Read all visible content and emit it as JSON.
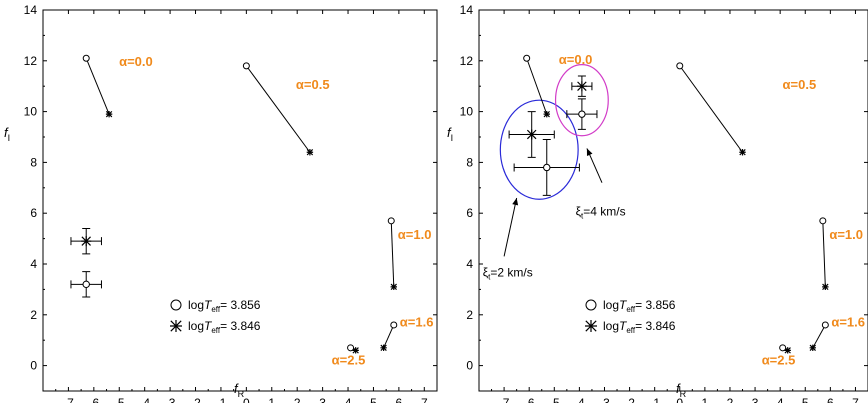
{
  "chart_data": [
    {
      "type": "scatter",
      "panel": "left",
      "xlabel": "f",
      "xlabel_sub": "R",
      "ylabel": "f",
      "ylabel_sub": "I",
      "xlim": [
        -8,
        7.5
      ],
      "ylim": [
        -1,
        14
      ],
      "xticks": [
        -7,
        -6,
        -5,
        -4,
        -3,
        -2,
        -1,
        0,
        1,
        2,
        3,
        4,
        5,
        6,
        7
      ],
      "yticks": [
        0,
        2,
        4,
        6,
        8,
        10,
        12,
        14
      ],
      "grid": false,
      "series": [
        {
          "legend_prefix": "log",
          "legend_var": "T",
          "legend_sub": "eff",
          "legend_value": "= 3.856",
          "marker": "circle"
        },
        {
          "legend_prefix": "log",
          "legend_var": "T",
          "legend_sub": "eff",
          "legend_value": "= 3.846",
          "marker": "star"
        }
      ],
      "pairs": [
        {
          "label": "α=0.0",
          "circle": [
            -6.3,
            12.1
          ],
          "star": [
            -5.4,
            9.9
          ]
        },
        {
          "label": "α=0.5",
          "circle": [
            0.0,
            11.8
          ],
          "star": [
            2.5,
            8.4
          ]
        },
        {
          "label": "α=1.0",
          "circle": [
            5.7,
            5.7
          ],
          "star": [
            5.8,
            3.1
          ]
        },
        {
          "label": "α=1.6",
          "circle": [
            5.8,
            1.6
          ],
          "star": [
            5.4,
            0.7
          ]
        },
        {
          "label": "α=2.5",
          "circle": [
            4.1,
            0.7
          ],
          "star": [
            4.3,
            0.6
          ]
        }
      ],
      "error_points": [
        {
          "marker": "star",
          "x": -6.3,
          "y": 4.9,
          "xerr": 0.6,
          "yerr": 0.5
        },
        {
          "marker": "circle",
          "x": -6.3,
          "y": 3.2,
          "xerr": 0.6,
          "yerr": 0.5
        }
      ]
    },
    {
      "type": "scatter",
      "panel": "right",
      "xlabel": "f",
      "xlabel_sub": "R",
      "ylabel": "f",
      "ylabel_sub": "I",
      "xlim": [
        -8,
        7.5
      ],
      "ylim": [
        -1,
        14
      ],
      "xticks": [
        -7,
        -6,
        -5,
        -4,
        -3,
        -2,
        -1,
        0,
        1,
        2,
        3,
        4,
        5,
        6,
        7
      ],
      "yticks": [
        0,
        2,
        4,
        6,
        8,
        10,
        12,
        14
      ],
      "grid": false,
      "series": [
        {
          "legend_prefix": "log",
          "legend_var": "T",
          "legend_sub": "eff",
          "legend_value": "= 3.856",
          "marker": "circle"
        },
        {
          "legend_prefix": "log",
          "legend_var": "T",
          "legend_sub": "eff",
          "legend_value": "= 3.846",
          "marker": "star"
        }
      ],
      "pairs": [
        {
          "label": "α=0.0",
          "circle": [
            -6.1,
            12.1
          ],
          "star": [
            -5.3,
            9.9
          ]
        },
        {
          "label": "α=0.5",
          "circle": [
            0.0,
            11.8
          ],
          "star": [
            2.5,
            8.4
          ]
        },
        {
          "label": "α=1.0",
          "circle": [
            5.7,
            5.7
          ],
          "star": [
            5.8,
            3.1
          ]
        },
        {
          "label": "α=1.6",
          "circle": [
            5.8,
            1.6
          ],
          "star": [
            5.3,
            0.7
          ]
        },
        {
          "label": "α=2.5",
          "circle": [
            4.1,
            0.7
          ],
          "star": [
            4.3,
            0.6
          ]
        }
      ],
      "error_points": [
        {
          "marker": "star",
          "x": -5.9,
          "y": 9.1,
          "xerr": 0.9,
          "yerr": 0.9
        },
        {
          "marker": "circle",
          "x": -5.3,
          "y": 7.8,
          "xerr": 1.3,
          "yerr": 1.1
        },
        {
          "marker": "star",
          "x": -3.9,
          "y": 11.0,
          "xerr": 0.4,
          "yerr": 0.4
        },
        {
          "marker": "circle",
          "x": -3.9,
          "y": 9.9,
          "xerr": 0.6,
          "yerr": 0.6
        }
      ],
      "ellipses": [
        {
          "color": "#2a2ad8",
          "cx": -5.6,
          "cy": 8.5,
          "rx": 1.55,
          "ry": 1.95
        },
        {
          "color": "#d23cc8",
          "cx": -3.9,
          "cy": 10.45,
          "rx": 1.05,
          "ry": 1.4
        }
      ],
      "annotations": [
        {
          "prefix": "ξ",
          "sub": "t",
          "suffix": "=4 km/s",
          "text_at": [
            -4.15,
            5.9
          ],
          "arrow_from": [
            -3.1,
            7.2
          ],
          "arrow_to": [
            -3.7,
            8.55
          ]
        },
        {
          "prefix": "ξ",
          "sub": "t",
          "suffix": "=2 km/s",
          "text_at": [
            -7.85,
            3.5
          ],
          "arrow_from": [
            -7.0,
            4.3
          ],
          "arrow_to": [
            -6.5,
            6.6
          ]
        }
      ]
    }
  ]
}
